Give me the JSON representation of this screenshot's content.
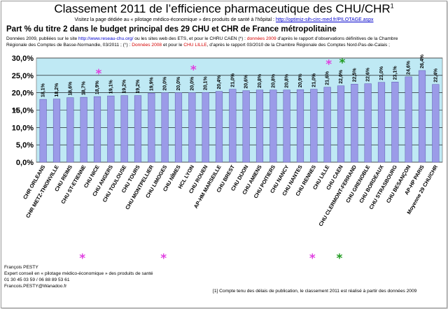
{
  "header": {
    "title": "Classement 2011 de l’efficience pharmaceutique des CHU/CHR",
    "title_sup": "1",
    "visit_text": "Visitez la page dédiée au « pilotage médico-économique » des produits de santé à l’hôpital :",
    "visit_link": "http://optimiz-sih-circ-med.fr/PILOTAGE.aspx",
    "subtitle": "Part % du titre 2 dans le budget principal des 29 CHU et CHR de France métropolitaine",
    "source_line1_a": "Données 2009, publiées sur le site",
    "source_line1_link": "http://www.reseau-chu.org/",
    "source_line1_b": "ou les sites web des ETS, et pour le CHRU CAEN  (*) :",
    "source_line1_red": "données 2009",
    "source_line1_c": "d’après le rapport d’observations définitives de la Chambre",
    "source_line2": "Régionale des Comptes de Basse-Normandie, 03/2011 ;  (°) :",
    "source_line2_red1": "Données 2008",
    "source_line2_b": "et pour le",
    "source_line2_red2": "CHU LILLE",
    "source_line2_c": ", d’après le rapport 03/2010 de la Chambre Régionale des Comptes Nord-Pas-de-Calais ;"
  },
  "footer": {
    "author_lines": [
      "François PESTY",
      "Expert conseil en « pilotage médico-économique » des produits de santé",
      "01 30 45 03 59 / 06 88 89 53 61",
      "Francois.PESTY@Wanadoo.fr"
    ],
    "footnote": "[1] Compte tenu des délais de publication, le classement 2011 est réalisé à partir des données 2009"
  },
  "colors": {
    "plot_bg": "#bfe9f4",
    "bar": "#9b9be8",
    "bar_stroke": "#5a5ab0",
    "magenta_star": "#e040e0",
    "green_star": "#1f9a1f"
  },
  "chart_data": {
    "type": "bar",
    "ylabel": "%",
    "ylim": [
      0,
      30
    ],
    "yticks": [
      "0,0%",
      "5,0%",
      "10,0%",
      "15,0%",
      "20,0%",
      "25,0%",
      "30,0%"
    ],
    "grid": true,
    "categories": [
      "CHR ORLEANS",
      "CHR METZ-THIONVILLE",
      "CHU REIMS",
      "CHU ST-ETIENNE",
      "CHU NICE",
      "CHU ANGERS",
      "CHU TOULOUSE",
      "CHU TOURS",
      "CHU MONTPELLIER",
      "CHU LIMOGES",
      "CHU NÎMES",
      "HCL LYON",
      "CHU ROUEN",
      "AP-HM MARSEILLE",
      "CHU BREST",
      "CHU DIJON",
      "CHU AMIENS",
      "CHU POITIERS",
      "CHU NANCY",
      "CHU NANTES",
      "CHU RENNES",
      "CHU LILLE",
      "CHU CAEN",
      "CHU CLERMONT-FERRAND",
      "CHU GRENOBLE",
      "CHU BORDEAUX",
      "CHU STRASBOURG",
      "CHU BESANÇON",
      "AP-HP PARIS",
      "Moyenne 29 CHU/CHR"
    ],
    "values": [
      18.1,
      18.2,
      18.6,
      18.7,
      18.9,
      19.1,
      19.2,
      19.2,
      19.9,
      20.0,
      20.0,
      20.0,
      20.1,
      20.4,
      21.0,
      20.6,
      20.8,
      20.8,
      20.8,
      20.9,
      21.0,
      21.6,
      22.0,
      22.5,
      22.6,
      23.0,
      23.1,
      24.6,
      26.4,
      22.4
    ],
    "data_labels": [
      "18,1%",
      "18,2%",
      "18,6%",
      "18,7%",
      "18,9%",
      "19,1%",
      "19,2%",
      "19,2%",
      "19,9%",
      "20,0%",
      "20,0%",
      "20,0%",
      "20,1%",
      "20,4%",
      "21,0%",
      "20,6%",
      "20,8%",
      "20,8%",
      "20,8%",
      "20,9%",
      "21,0%",
      "21,6%",
      "22,0%",
      "22,5%",
      "22,6%",
      "23,0%",
      "23,1%",
      "24,6%",
      "26,4%",
      "22,4%"
    ],
    "stars": [
      {
        "category_index": 4,
        "color": "magenta",
        "position": "above"
      },
      {
        "category_index": 11,
        "color": "magenta",
        "position": "above"
      },
      {
        "category_index": 21,
        "color": "magenta",
        "position": "above"
      },
      {
        "category_index": 22,
        "color": "green",
        "position": "above"
      },
      {
        "category_index": 3,
        "color": "magenta",
        "position": "below"
      },
      {
        "category_index": 9,
        "color": "magenta",
        "position": "below"
      },
      {
        "category_index": 20,
        "color": "magenta",
        "position": "below"
      },
      {
        "category_index": 22,
        "color": "green",
        "position": "below"
      }
    ]
  }
}
